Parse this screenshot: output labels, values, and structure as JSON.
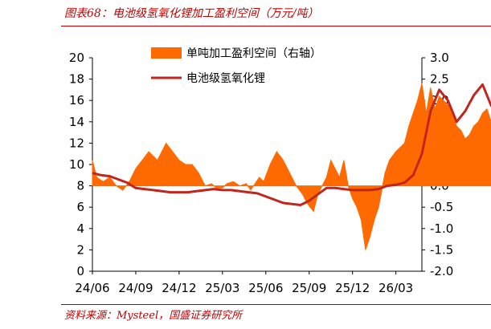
{
  "page": {
    "title": "图表68：电池级氢氧化锂加工盈利空间（万元/吨）",
    "source": "资料来源：Mysteel，国盛证券研究所"
  },
  "colors": {
    "accent": "#c00000",
    "bar": "#ff6a00",
    "line": "#c0261b"
  },
  "chart_data": {
    "type": "line",
    "x_tick_labels": [
      "24/06",
      "24/09",
      "24/12",
      "25/03",
      "25/06",
      "25/09",
      "25/12",
      "26/03"
    ],
    "y_left": {
      "ylim": [
        0,
        20
      ],
      "ticks": [
        0,
        2,
        4,
        6,
        8,
        10,
        12,
        14,
        16,
        18,
        20
      ]
    },
    "y_right": {
      "ylim": [
        -2.0,
        3.0
      ],
      "ticks": [
        "-2.0",
        "-1.5",
        "-1.0",
        "-0.5",
        "0.0",
        "0.5",
        "1.0",
        "1.5",
        "2.0",
        "2.5",
        "3.0"
      ]
    },
    "legend": {
      "placement": "top-center",
      "entries": [
        "单吨加工盈利空间（右轴）",
        "电池级氢氧化锂"
      ]
    },
    "series": [
      {
        "name": "单吨加工盈利空间（右轴）",
        "axis": "right",
        "style": "area",
        "x": [
          0,
          0.1,
          0.25,
          0.4,
          0.55,
          0.7,
          0.85,
          1.0,
          1.15,
          1.3,
          1.5,
          1.7,
          1.85,
          2.0,
          2.15,
          2.3,
          2.45,
          2.6,
          2.75,
          2.85,
          3.0,
          3.1,
          3.25,
          3.4,
          3.55,
          3.65,
          3.75,
          3.85,
          3.95,
          4.1,
          4.25,
          4.4,
          4.55,
          4.7,
          4.85,
          4.95,
          5.1,
          5.2,
          5.3,
          5.4,
          5.5,
          5.6,
          5.7,
          5.8,
          5.9,
          6.0,
          6.1,
          6.2,
          6.3,
          6.4,
          6.5,
          6.6,
          6.75,
          6.85,
          7.0,
          7.1,
          7.2,
          7.3,
          7.4,
          7.5,
          7.6,
          7.7,
          7.8,
          7.9,
          8.0,
          8.1,
          8.2,
          8.3,
          8.4,
          8.5,
          8.6,
          8.7,
          8.8,
          8.9,
          9.0,
          9.1,
          9.2,
          9.3,
          9.4,
          9.5,
          9.55,
          9.6
        ],
        "values": [
          0.6,
          0.2,
          0.1,
          0.2,
          0.0,
          -0.1,
          0.1,
          0.4,
          0.6,
          0.8,
          0.6,
          1.0,
          0.8,
          0.6,
          0.5,
          0.5,
          0.3,
          0.0,
          0.05,
          -0.05,
          -0.05,
          0.05,
          0.1,
          0.0,
          0.05,
          -0.1,
          0.05,
          0.2,
          0.1,
          0.5,
          0.8,
          0.6,
          0.3,
          0.0,
          -0.2,
          -0.4,
          -0.6,
          -0.2,
          0.0,
          0.2,
          0.6,
          0.4,
          0.2,
          0.6,
          0.0,
          -0.3,
          -0.5,
          -0.8,
          -1.5,
          -1.2,
          -0.8,
          -0.5,
          0.3,
          0.6,
          0.8,
          0.9,
          1.0,
          1.4,
          1.7,
          2.0,
          2.4,
          1.7,
          2.3,
          1.8,
          2.1,
          2.0,
          1.9,
          1.7,
          1.4,
          1.3,
          1.1,
          1.2,
          1.4,
          1.5,
          1.7,
          1.8,
          1.5,
          1.3,
          1.4,
          0.8,
          0.3,
          -0.2
        ]
      },
      {
        "name": "电池级氢氧化锂",
        "axis": "left",
        "style": "line",
        "x": [
          0,
          0.2,
          0.4,
          0.6,
          0.8,
          1.0,
          1.2,
          1.4,
          1.6,
          1.8,
          2.0,
          2.2,
          2.4,
          2.6,
          2.8,
          3.0,
          3.2,
          3.4,
          3.6,
          3.8,
          4.0,
          4.2,
          4.4,
          4.6,
          4.8,
          5.0,
          5.2,
          5.4,
          5.6,
          5.8,
          6.0,
          6.2,
          6.4,
          6.6,
          6.8,
          7.0,
          7.2,
          7.4,
          7.6,
          7.8,
          8.0,
          8.2,
          8.4,
          8.6,
          8.8,
          9.0,
          9.2,
          9.4,
          9.6
        ],
        "values": [
          9.2,
          9.0,
          8.9,
          8.6,
          8.3,
          7.8,
          7.7,
          7.6,
          7.5,
          7.4,
          7.4,
          7.4,
          7.5,
          7.6,
          7.7,
          7.6,
          7.6,
          7.5,
          7.4,
          7.3,
          7.0,
          6.7,
          6.4,
          6.3,
          6.2,
          6.6,
          7.2,
          7.8,
          7.8,
          7.7,
          7.6,
          7.6,
          7.6,
          7.7,
          8.0,
          8.1,
          8.3,
          9.0,
          11.0,
          15.0,
          17.0,
          16.0,
          14.0,
          15.0,
          16.5,
          17.5,
          15.5,
          15.0,
          14.6
        ]
      }
    ]
  }
}
